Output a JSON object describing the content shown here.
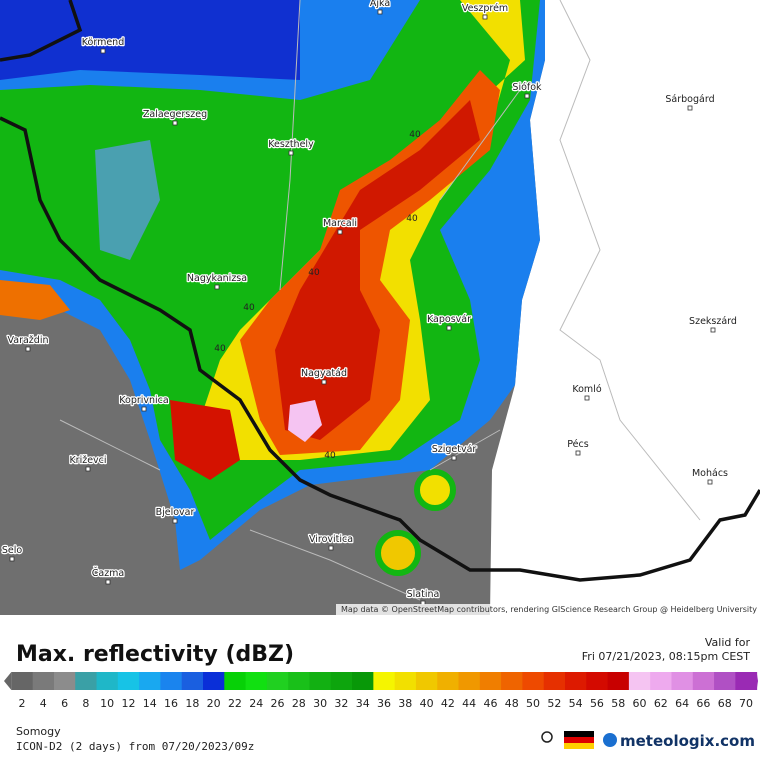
{
  "map": {
    "places": [
      {
        "label": "Ajka"
      },
      {
        "label": "Veszprém"
      },
      {
        "label": "Körmend"
      },
      {
        "label": "Siófok"
      },
      {
        "label": "Sárbogárd"
      },
      {
        "label": "Zalaegerszeg"
      },
      {
        "label": "Keszthely"
      },
      {
        "label": "Marcali"
      },
      {
        "label": "Nagykanizsa"
      },
      {
        "label": "Kaposvár"
      },
      {
        "label": "Szekszárd"
      },
      {
        "label": "Varaždin"
      },
      {
        "label": "Nagyatád"
      },
      {
        "label": "Komló"
      },
      {
        "label": "Koprivnica"
      },
      {
        "label": "Pécs"
      },
      {
        "label": "Szigetvár"
      },
      {
        "label": "Križevci"
      },
      {
        "label": "Mohács"
      },
      {
        "label": "Bjelovar"
      },
      {
        "label": "Selo"
      },
      {
        "label": "Virovitica"
      },
      {
        "label": "Čazma"
      },
      {
        "label": "Slatina"
      }
    ],
    "contour_labels": [
      40,
      40,
      40,
      40,
      40,
      40
    ],
    "attribution": "Map data © OpenStreetMap contributors, rendering GIScience Research Group @ Heidelberg University"
  },
  "legend": {
    "title": "Max. reflectivity (dBZ)",
    "valid_label": "Valid for",
    "valid_time": "Fri 07/21/2023, 08:15pm CEST",
    "ticks": [
      2,
      4,
      6,
      8,
      10,
      12,
      14,
      16,
      18,
      20,
      22,
      24,
      26,
      28,
      30,
      32,
      34,
      36,
      38,
      40,
      42,
      44,
      46,
      48,
      50,
      52,
      54,
      56,
      58,
      60,
      62,
      64,
      66,
      68,
      70
    ],
    "colors": [
      "#666666",
      "#7a7a7a",
      "#8c8c8c",
      "#3aa0a6",
      "#1fb7c8",
      "#17c3e6",
      "#19a8f0",
      "#1a84ee",
      "#1a5fe0",
      "#0a2fd8",
      "#07d107",
      "#11e011",
      "#20d020",
      "#19c019",
      "#12b012",
      "#0da50d",
      "#089808",
      "#f5f500",
      "#f2e000",
      "#f0c800",
      "#f0b000",
      "#f09800",
      "#f07e00",
      "#ef6400",
      "#ee4a00",
      "#e63000",
      "#dd1a00",
      "#d40a00",
      "#c80000",
      "#f5c4f2",
      "#eeaaee",
      "#e090e4",
      "#cc70d4",
      "#b050c4",
      "#9a2ab4"
    ]
  },
  "footer": {
    "region": "Somogy",
    "model": "ICON-D2 (2 days) from 07/20/2023/09z",
    "brand": "meteologix.com"
  }
}
